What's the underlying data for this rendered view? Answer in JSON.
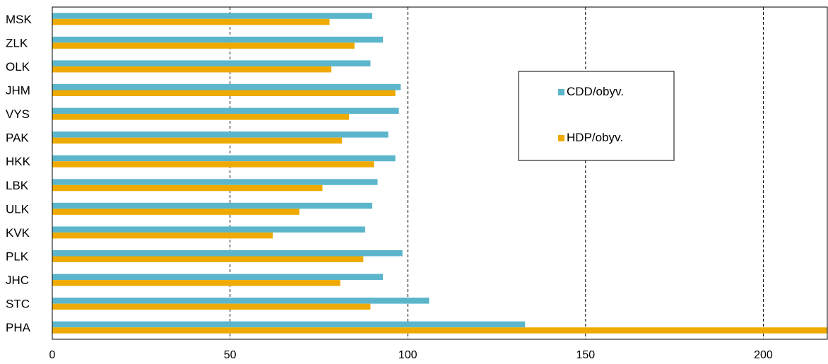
{
  "chart_data": {
    "type": "bar",
    "orientation": "horizontal",
    "categories": [
      "MSK",
      "ZLK",
      "OLK",
      "JHM",
      "VYS",
      "PAK",
      "HKK",
      "LBK",
      "ULK",
      "KVK",
      "PLK",
      "JHC",
      "STC",
      "PHA"
    ],
    "series": [
      {
        "name": "CDD/obyv.",
        "color": "#5BB6CB",
        "values": [
          90,
          93,
          89.5,
          98,
          97.5,
          94.5,
          96.5,
          91.5,
          90,
          88,
          98.5,
          93,
          106,
          133
        ]
      },
      {
        "name": "HDP/obyv.",
        "color": "#EEAA00",
        "values": [
          78,
          85,
          78.5,
          96.5,
          83.5,
          81.5,
          90.5,
          76,
          69.5,
          62,
          87.5,
          81,
          89.5,
          218
        ]
      }
    ],
    "x_ticks": [
      0,
      50,
      100,
      150,
      200
    ],
    "xlim": [
      0,
      218
    ],
    "xlabel": "",
    "ylabel": "",
    "title": "",
    "grid": "vertical dashed",
    "legend_position": "upper-right"
  }
}
